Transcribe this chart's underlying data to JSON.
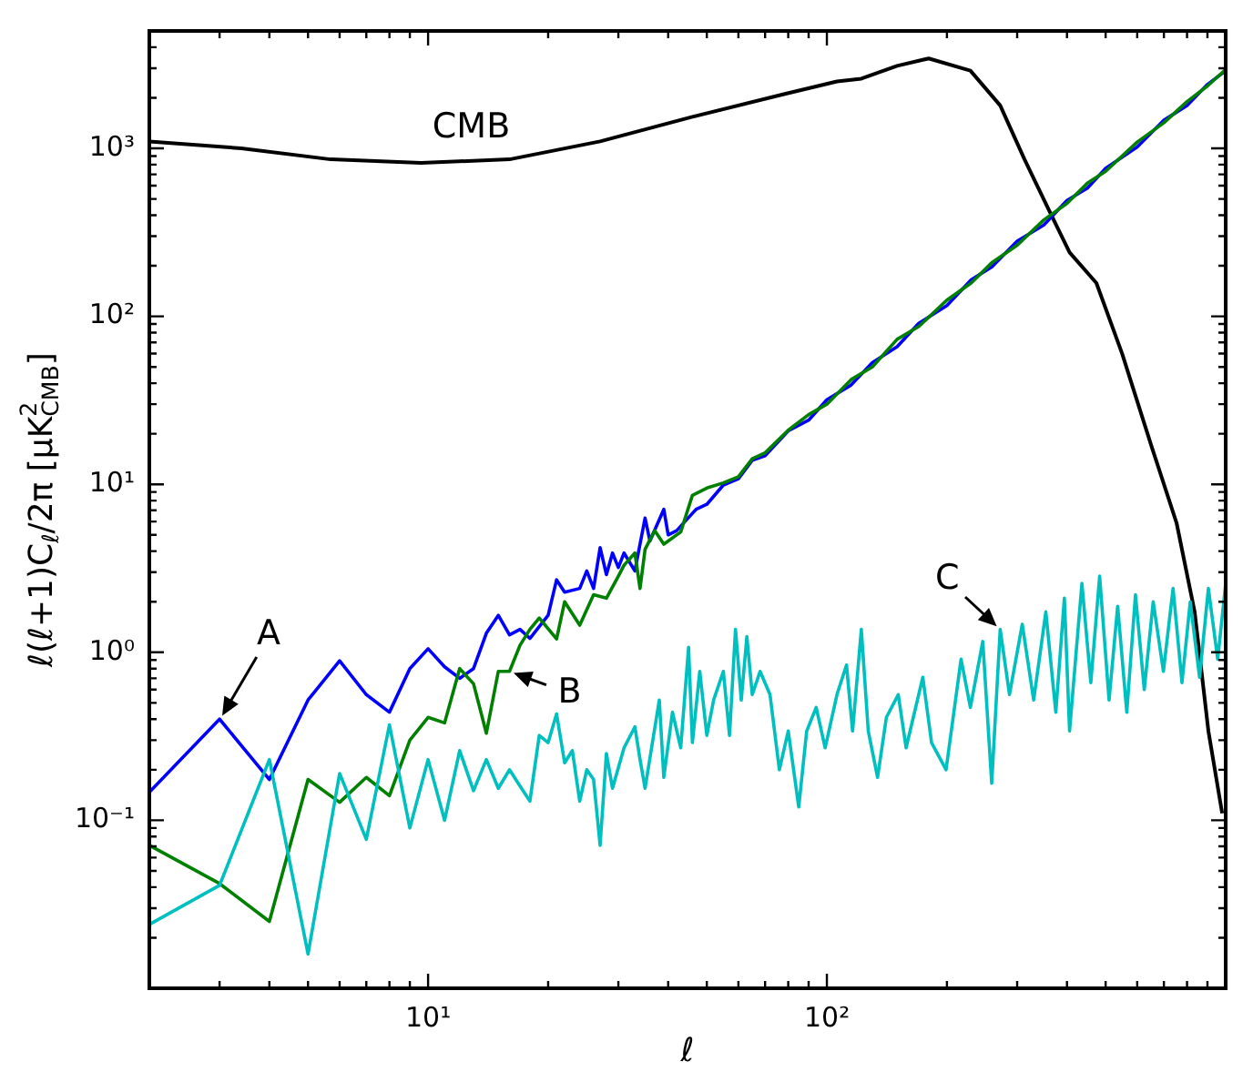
{
  "chart_data": {
    "type": "line",
    "xlabel": "ℓ",
    "ylabel": "ℓ(ℓ+1)C$_{ℓ}$/2π [μK$^{2}$$_{CMB}$]",
    "log": "xy",
    "annotations": [
      {
        "text": "A",
        "x": 3,
        "y": 0.4
      },
      {
        "text": "B",
        "x": 16,
        "y": 0.77
      },
      {
        "text": "C",
        "x": 272,
        "y": 1.37
      }
    ],
    "xlim": [
      2,
      1000
    ],
    "ylim": [
      0.01,
      5000
    ],
    "xticks": [
      {
        "value": 2,
        "label": null
      },
      {
        "value": 3,
        "label": null
      },
      {
        "value": 4,
        "label": null
      },
      {
        "value": 5,
        "label": null
      },
      {
        "value": 6,
        "label": null
      },
      {
        "value": 7,
        "label": null
      },
      {
        "value": 8,
        "label": null
      },
      {
        "value": 9,
        "label": null
      },
      {
        "value": 10,
        "label": "10¹"
      },
      {
        "value": 20,
        "label": null
      },
      {
        "value": 30,
        "label": null
      },
      {
        "value": 40,
        "label": null
      },
      {
        "value": 50,
        "label": null
      },
      {
        "value": 60,
        "label": null
      },
      {
        "value": 70,
        "label": null
      },
      {
        "value": 80,
        "label": null
      },
      {
        "value": 90,
        "label": null
      },
      {
        "value": 100,
        "label": "10²"
      },
      {
        "value": 200,
        "label": null
      },
      {
        "value": 300,
        "label": null
      },
      {
        "value": 400,
        "label": null
      },
      {
        "value": 500,
        "label": null
      },
      {
        "value": 600,
        "label": null
      },
      {
        "value": 700,
        "label": null
      },
      {
        "value": 800,
        "label": null
      },
      {
        "value": 900,
        "label": null
      }
    ],
    "yticks": [
      {
        "value": 0.02,
        "label": null
      },
      {
        "value": 0.03,
        "label": null
      },
      {
        "value": 0.04,
        "label": null
      },
      {
        "value": 0.05,
        "label": null
      },
      {
        "value": 0.06,
        "label": null
      },
      {
        "value": 0.07,
        "label": null
      },
      {
        "value": 0.08,
        "label": null
      },
      {
        "value": 0.09,
        "label": null
      },
      {
        "value": 0.1,
        "label": "10⁻¹"
      },
      {
        "value": 0.2,
        "label": null
      },
      {
        "value": 0.3,
        "label": null
      },
      {
        "value": 0.4,
        "label": null
      },
      {
        "value": 0.5,
        "label": null
      },
      {
        "value": 0.6,
        "label": null
      },
      {
        "value": 0.7,
        "label": null
      },
      {
        "value": 0.8,
        "label": null
      },
      {
        "value": 0.9,
        "label": null
      },
      {
        "value": 1,
        "label": "10⁰"
      },
      {
        "value": 2,
        "label": null
      },
      {
        "value": 3,
        "label": null
      },
      {
        "value": 4,
        "label": null
      },
      {
        "value": 5,
        "label": null
      },
      {
        "value": 6,
        "label": null
      },
      {
        "value": 7,
        "label": null
      },
      {
        "value": 8,
        "label": null
      },
      {
        "value": 9,
        "label": null
      },
      {
        "value": 10,
        "label": "10¹"
      },
      {
        "value": 20,
        "label": null
      },
      {
        "value": 30,
        "label": null
      },
      {
        "value": 40,
        "label": null
      },
      {
        "value": 50,
        "label": null
      },
      {
        "value": 60,
        "label": null
      },
      {
        "value": 70,
        "label": null
      },
      {
        "value": 80,
        "label": null
      },
      {
        "value": 90,
        "label": null
      },
      {
        "value": 100,
        "label": "10²"
      },
      {
        "value": 200,
        "label": null
      },
      {
        "value": 300,
        "label": null
      },
      {
        "value": 400,
        "label": null
      },
      {
        "value": 500,
        "label": null
      },
      {
        "value": 600,
        "label": null
      },
      {
        "value": 700,
        "label": null
      },
      {
        "value": 800,
        "label": null
      },
      {
        "value": 900,
        "label": null
      },
      {
        "value": 1000,
        "label": "10³"
      },
      {
        "value": 2000,
        "label": null
      },
      {
        "value": 3000,
        "label": null
      },
      {
        "value": 4000,
        "label": null
      }
    ],
    "series": [
      {
        "name": "CMB",
        "color": "#000000",
        "x": [
          2,
          3.4,
          5.7,
          9.6,
          16,
          27,
          46,
          78,
          106,
          122,
          150,
          180,
          229,
          272,
          313,
          362,
          406,
          474,
          550,
          653,
          753,
          836,
          905,
          980
        ],
        "values": [
          1100,
          1000,
          860,
          820,
          860,
          1100,
          1540,
          2100,
          2500,
          2600,
          3100,
          3430,
          2900,
          1800,
          860,
          420,
          240,
          158,
          60,
          16.6,
          5.9,
          1.74,
          0.34,
          0.11
        ]
      },
      {
        "color": "#0000ff",
        "x": [
          2,
          3,
          4,
          5,
          6,
          7,
          8,
          9,
          10,
          11,
          12,
          13,
          14,
          15,
          16,
          17,
          18,
          20,
          21,
          22,
          24,
          25,
          26,
          27,
          28,
          29,
          30,
          31,
          33,
          35,
          36,
          39,
          40,
          42,
          47,
          50,
          55,
          60,
          65,
          70,
          80,
          90,
          100,
          115,
          130,
          150,
          170,
          200,
          230,
          260,
          300,
          350,
          400,
          450,
          500,
          600,
          700,
          800,
          900,
          1000
        ],
        "values": [
          0.147,
          0.4,
          0.175,
          0.52,
          0.89,
          0.56,
          0.44,
          0.8,
          1.05,
          0.82,
          0.7,
          0.8,
          1.3,
          1.66,
          1.27,
          1.37,
          1.21,
          1.66,
          2.7,
          2.28,
          2.4,
          3.05,
          2.4,
          4.2,
          2.9,
          3.9,
          3.2,
          3.9,
          3.05,
          6.3,
          4.6,
          7.1,
          5.0,
          5.3,
          7.1,
          7.6,
          9.9,
          10.8,
          13.9,
          14.8,
          20.8,
          24.1,
          31.9,
          39,
          53,
          66,
          91,
          116,
          165,
          198,
          280,
          350,
          490,
          580,
          760,
          1020,
          1470,
          1800,
          2400,
          2900
        ]
      },
      {
        "color": "#008000",
        "x": [
          2,
          3,
          4,
          5,
          6,
          7,
          8,
          9,
          10,
          11,
          12,
          13,
          14,
          15,
          16,
          17,
          18,
          19,
          21,
          22,
          24,
          26,
          28,
          30,
          31,
          33,
          34,
          35,
          37,
          39,
          43,
          46,
          50,
          55,
          60,
          65,
          70,
          80,
          90,
          100,
          115,
          130,
          150,
          170,
          200,
          230,
          260,
          300,
          350,
          400,
          450,
          500,
          600,
          700,
          800,
          900,
          1000
        ],
        "values": [
          0.071,
          0.042,
          0.025,
          0.175,
          0.128,
          0.18,
          0.14,
          0.3,
          0.41,
          0.38,
          0.8,
          0.65,
          0.33,
          0.77,
          0.77,
          1.1,
          1.37,
          1.6,
          1.2,
          2.0,
          1.45,
          2.2,
          2.1,
          2.84,
          3.3,
          3.9,
          2.4,
          4.1,
          5.3,
          4.4,
          5.2,
          8.6,
          9.5,
          10.2,
          11.1,
          14.2,
          15.4,
          21,
          26,
          30,
          42,
          50,
          73,
          87,
          125,
          158,
          210,
          265,
          375,
          470,
          620,
          730,
          1090,
          1420,
          1900,
          2350,
          2950
        ]
      },
      {
        "color": "#00bfbf",
        "x": [
          2,
          3,
          4,
          5,
          6,
          7,
          8,
          9,
          10,
          11,
          12,
          13,
          14,
          15,
          16,
          17,
          18,
          19,
          20,
          21,
          22,
          23,
          24,
          25,
          26,
          27,
          28,
          29,
          31,
          33,
          34,
          35,
          38,
          39,
          41,
          43,
          45,
          46,
          48,
          50,
          52,
          55,
          57,
          59,
          61,
          63,
          65,
          68,
          72,
          76,
          80,
          85,
          89,
          94,
          99,
          106,
          112,
          116,
          122,
          127,
          134,
          141,
          151,
          158,
          174,
          183,
          199,
          217,
          229,
          246,
          259,
          272,
          287,
          309,
          330,
          354,
          375,
          394,
          406,
          436,
          459,
          483,
          510,
          536,
          565,
          594,
          625,
          658,
          698,
          738,
          777,
          815,
          860,
          905,
          955,
          1000
        ],
        "values": [
          0.024,
          0.041,
          0.23,
          0.016,
          0.19,
          0.077,
          0.37,
          0.09,
          0.23,
          0.1,
          0.26,
          0.15,
          0.23,
          0.155,
          0.2,
          0.16,
          0.13,
          0.32,
          0.29,
          0.43,
          0.22,
          0.26,
          0.13,
          0.2,
          0.175,
          0.071,
          0.25,
          0.155,
          0.27,
          0.36,
          0.23,
          0.155,
          0.52,
          0.18,
          0.44,
          0.27,
          1.07,
          0.29,
          0.77,
          0.32,
          0.52,
          0.77,
          0.32,
          1.37,
          0.52,
          1.24,
          0.56,
          0.77,
          0.56,
          0.2,
          0.34,
          0.12,
          0.34,
          0.47,
          0.27,
          0.56,
          0.84,
          0.34,
          1.37,
          0.34,
          0.18,
          0.41,
          0.56,
          0.27,
          0.71,
          0.29,
          0.2,
          0.91,
          0.47,
          1.16,
          0.166,
          1.37,
          0.56,
          1.47,
          0.52,
          1.74,
          0.44,
          2.1,
          0.34,
          2.57,
          0.66,
          2.84,
          0.52,
          1.88,
          0.44,
          2.2,
          0.6,
          2.0,
          0.77,
          2.4,
          0.66,
          2.0,
          0.71,
          2.4,
          0.91,
          2.57
        ]
      }
    ]
  }
}
